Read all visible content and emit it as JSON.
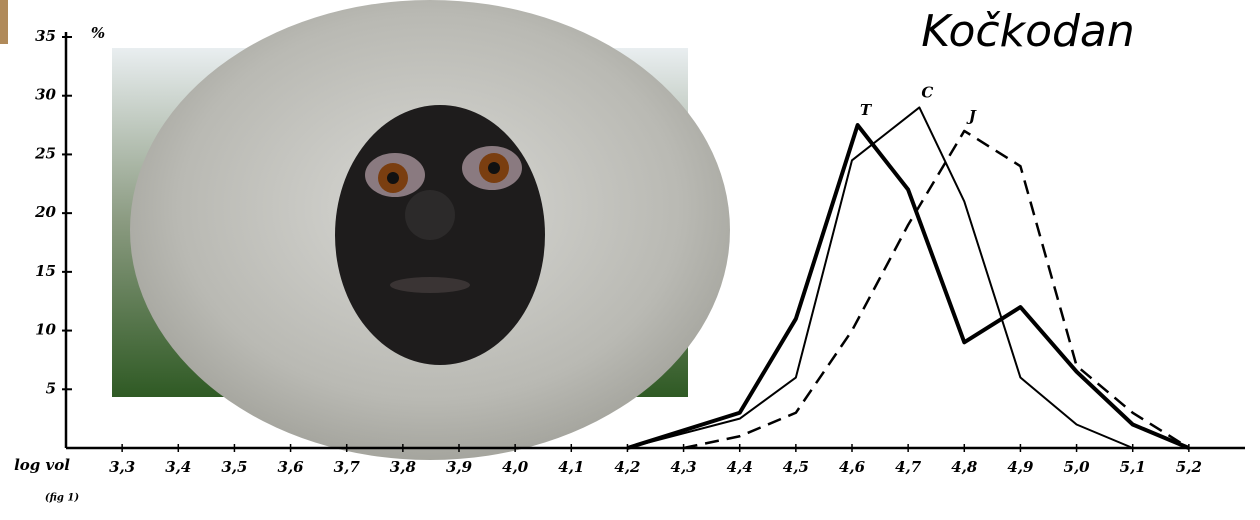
{
  "chart_data": {
    "type": "line",
    "title": "Kočkodan",
    "x_label": "log vol",
    "y_label": "%",
    "note": "(fig 1)",
    "xlim": [
      3.2,
      5.3
    ],
    "ylim": [
      0,
      35
    ],
    "xticks": [
      {
        "value": 3.3,
        "label": "3,3"
      },
      {
        "value": 3.4,
        "label": "3,4"
      },
      {
        "value": 3.5,
        "label": "3,5"
      },
      {
        "value": 3.6,
        "label": "3,6"
      },
      {
        "value": 3.7,
        "label": "3,7"
      },
      {
        "value": 3.8,
        "label": "3,8"
      },
      {
        "value": 3.9,
        "label": "3,9"
      },
      {
        "value": 4.0,
        "label": "4,0"
      },
      {
        "value": 4.1,
        "label": "4,1"
      },
      {
        "value": 4.2,
        "label": "4,2"
      },
      {
        "value": 4.3,
        "label": "4,3"
      },
      {
        "value": 4.4,
        "label": "4,4"
      },
      {
        "value": 4.5,
        "label": "4,5"
      },
      {
        "value": 4.6,
        "label": "4,6"
      },
      {
        "value": 4.7,
        "label": "4,7"
      },
      {
        "value": 4.8,
        "label": "4,8"
      },
      {
        "value": 4.9,
        "label": "4,9"
      },
      {
        "value": 5.0,
        "label": "5,0"
      },
      {
        "value": 5.1,
        "label": "5,1"
      },
      {
        "value": 5.2,
        "label": "5,2"
      }
    ],
    "yticks": [
      5,
      10,
      15,
      20,
      25,
      30,
      35
    ],
    "series": [
      {
        "name": "T",
        "color": "#000000",
        "line_width": 4,
        "dashed": false,
        "x": [
          4.2,
          4.4,
          4.5,
          4.61,
          4.7,
          4.8,
          4.9,
          5.0,
          5.1,
          5.2
        ],
        "values": [
          0,
          3,
          11,
          27.5,
          22,
          9,
          12,
          6.5,
          2,
          0
        ]
      },
      {
        "name": "C",
        "color": "#000000",
        "line_width": 2,
        "dashed": false,
        "x": [
          4.2,
          4.4,
          4.5,
          4.6,
          4.72,
          4.8,
          4.9,
          5.0,
          5.1
        ],
        "values": [
          0,
          2.5,
          6,
          24.5,
          29,
          21,
          6,
          2,
          0
        ]
      },
      {
        "name": "J",
        "color": "#000000",
        "line_width": 2.5,
        "dashed": true,
        "x": [
          4.3,
          4.4,
          4.5,
          4.6,
          4.7,
          4.8,
          4.9,
          5.0,
          5.1,
          5.2
        ],
        "values": [
          0,
          1,
          3,
          10,
          19,
          27,
          24,
          7,
          3,
          0
        ]
      }
    ]
  }
}
